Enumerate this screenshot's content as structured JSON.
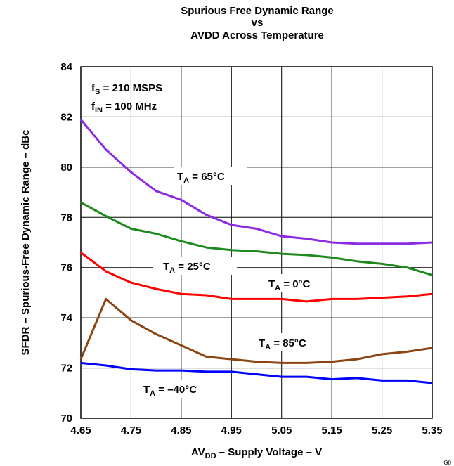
{
  "chart_data": {
    "type": "line",
    "title_lines": [
      "Spurious Free Dynamic Range",
      "vs",
      "AVDD Across Temperature"
    ],
    "xlabel": {
      "main": "AV",
      "sub": "DD",
      "rest": " – Supply Voltage – V"
    },
    "ylabel": "SFDR – Spurious-Free Dynamic Range – dBc",
    "xlim": [
      4.65,
      5.35
    ],
    "ylim": [
      70,
      84
    ],
    "xticks": [
      "4.65",
      "4.75",
      "4.85",
      "4.95",
      "5.05",
      "5.15",
      "5.25",
      "5.35"
    ],
    "yticks": [
      "70",
      "72",
      "74",
      "76",
      "78",
      "80",
      "82",
      "84"
    ],
    "grid": true,
    "x": [
      4.65,
      4.7,
      4.75,
      4.8,
      4.85,
      4.9,
      4.95,
      5.0,
      5.05,
      5.1,
      5.15,
      5.2,
      5.25,
      5.3,
      5.35
    ],
    "series": [
      {
        "name": "T_A = 65°C",
        "color": "#8a2be2",
        "values": [
          81.9,
          80.7,
          79.8,
          79.05,
          78.7,
          78.1,
          77.7,
          77.55,
          77.25,
          77.15,
          77.0,
          76.95,
          76.95,
          76.95,
          77.0
        ]
      },
      {
        "name": "T_A = 25°C",
        "color": "#1e8a1e",
        "values": [
          78.6,
          78.05,
          77.55,
          77.35,
          77.05,
          76.8,
          76.7,
          76.65,
          76.55,
          76.5,
          76.4,
          76.25,
          76.15,
          76.0,
          75.7
        ]
      },
      {
        "name": "T_A = 0°C",
        "color": "#ff0000",
        "values": [
          76.6,
          75.85,
          75.4,
          75.15,
          74.95,
          74.9,
          74.75,
          74.75,
          74.75,
          74.65,
          74.75,
          74.75,
          74.8,
          74.85,
          74.95
        ]
      },
      {
        "name": "T_A = 85°C",
        "color": "#8b4513",
        "values": [
          72.35,
          74.75,
          73.9,
          73.35,
          72.9,
          72.45,
          72.35,
          72.25,
          72.2,
          72.2,
          72.25,
          72.35,
          72.55,
          72.65,
          72.8
        ]
      },
      {
        "name": "T_A = –40°C",
        "color": "#0000ff",
        "values": [
          72.2,
          72.1,
          71.95,
          71.9,
          71.9,
          71.85,
          71.85,
          71.75,
          71.65,
          71.65,
          71.55,
          71.6,
          71.5,
          71.5,
          71.4
        ]
      }
    ],
    "conditions": [
      {
        "main": "f",
        "sub": "S",
        "rest": " = 210 MSPS"
      },
      {
        "main": "f",
        "sub": "IN",
        "rest": " = 100 MHz"
      }
    ],
    "curve_labels": [
      {
        "main": "T",
        "sub": "A",
        "rest": " = 65°C"
      },
      {
        "main": "T",
        "sub": "A",
        "rest": " = 25°C"
      },
      {
        "main": "T",
        "sub": "A",
        "rest": " = 0°C"
      },
      {
        "main": "T",
        "sub": "A",
        "rest": " = 85°C"
      },
      {
        "main": "T",
        "sub": "A",
        "rest": " = –40°C"
      }
    ],
    "corner_mark": "G0"
  }
}
